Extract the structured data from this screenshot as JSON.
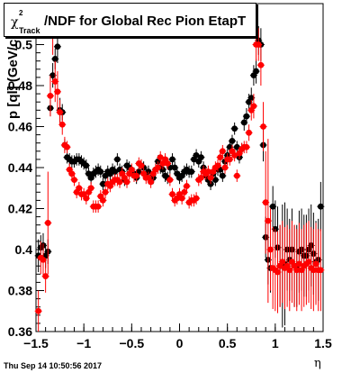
{
  "title": {
    "chi": "χ",
    "sup": "2",
    "sub": "Track",
    "main": "/NDF for Global Rec Pion EtapT"
  },
  "ylabel": "p [ql] (GeV/c",
  "xlabel": "η",
  "timestamp": "Thu Sep 14 10:50:56 2017",
  "colors": {
    "series_black": "#000000",
    "series_red": "#ff0000"
  },
  "chart_data": {
    "type": "scatter",
    "title": "χ2Track/NDF for Global Rec Pion EtapT",
    "xlabel": "η",
    "ylabel": "p [ql] (GeV/c",
    "xlim": [
      -1.5,
      1.5
    ],
    "ylim": [
      0.36,
      0.52
    ],
    "grid": false,
    "x_ticks": [
      "−1.5",
      "−1",
      "−0.5",
      "0",
      "0.5",
      "1",
      "1.5"
    ],
    "y_ticks": [
      "0.36",
      "0.38",
      "0.4",
      "0.42",
      "0.44",
      "0.46",
      "0.48",
      "0.5"
    ],
    "series": [
      {
        "color": "#000000",
        "x": [
          -1.475,
          -1.45,
          -1.425,
          -1.4,
          -1.375,
          -1.35,
          -1.325,
          -1.3,
          -1.275,
          -1.25,
          -1.225,
          -1.2,
          -1.175,
          -1.15,
          -1.125,
          -1.1,
          -1.075,
          -1.05,
          -1.025,
          -1.0,
          -0.975,
          -0.95,
          -0.925,
          -0.9,
          -0.875,
          -0.85,
          -0.825,
          -0.8,
          -0.775,
          -0.75,
          -0.725,
          -0.7,
          -0.675,
          -0.65,
          -0.625,
          -0.6,
          -0.575,
          -0.55,
          -0.525,
          -0.5,
          -0.475,
          -0.45,
          -0.425,
          -0.4,
          -0.375,
          -0.35,
          -0.325,
          -0.3,
          -0.275,
          -0.25,
          -0.225,
          -0.2,
          -0.175,
          -0.15,
          -0.125,
          -0.1,
          -0.075,
          -0.05,
          -0.025,
          0.0,
          0.025,
          0.05,
          0.075,
          0.1,
          0.125,
          0.15,
          0.175,
          0.2,
          0.225,
          0.25,
          0.275,
          0.3,
          0.325,
          0.35,
          0.375,
          0.4,
          0.425,
          0.45,
          0.475,
          0.5,
          0.525,
          0.55,
          0.575,
          0.6,
          0.625,
          0.65,
          0.675,
          0.7,
          0.725,
          0.75,
          0.775,
          0.8,
          0.825,
          0.85,
          0.875,
          0.9,
          0.925,
          0.95,
          0.975,
          1.0,
          1.025,
          1.05,
          1.075,
          1.1,
          1.125,
          1.15,
          1.175,
          1.2,
          1.225,
          1.25,
          1.275,
          1.3,
          1.325,
          1.35,
          1.375,
          1.4,
          1.425,
          1.45,
          1.475
        ],
        "y": [
          0.397,
          0.401,
          0.402,
          0.397,
          0.399,
          0.469,
          0.485,
          0.493,
          0.499,
          0.468,
          0.467,
          0.451,
          0.445,
          0.444,
          0.443,
          0.443,
          0.444,
          0.444,
          0.443,
          0.442,
          0.441,
          0.437,
          0.435,
          0.437,
          0.438,
          0.439,
          0.438,
          0.432,
          0.436,
          0.438,
          0.437,
          0.439,
          0.438,
          0.444,
          0.439,
          0.438,
          0.434,
          0.441,
          0.44,
          0.438,
          0.437,
          0.435,
          0.438,
          0.441,
          0.44,
          0.437,
          0.438,
          0.435,
          0.435,
          0.439,
          0.443,
          0.44,
          0.439,
          0.436,
          0.435,
          0.44,
          0.444,
          0.44,
          0.437,
          0.435,
          0.436,
          0.438,
          0.439,
          0.438,
          0.438,
          0.444,
          0.446,
          0.443,
          0.445,
          0.44,
          0.436,
          0.434,
          0.432,
          0.437,
          0.434,
          0.439,
          0.439,
          0.436,
          0.443,
          0.446,
          0.45,
          0.453,
          0.459,
          0.45,
          0.445,
          0.449,
          0.462,
          0.465,
          0.472,
          0.474,
          0.485,
          0.487,
          0.502,
          0.5,
          0.451,
          0.406,
          0.395,
          0.391,
          0.421,
          0.41,
          0.401,
          0.392,
          0.392,
          0.393,
          0.4,
          0.395,
          0.4,
          0.392,
          0.392,
          0.399,
          0.4,
          0.397,
          0.397,
          0.4,
          0.402,
          0.398,
          0.394,
          0.395,
          0.421
        ],
        "yerr": [
          0.008,
          0.006,
          0.006,
          0.006,
          0.006,
          0.004,
          0.006,
          0.005,
          0.008,
          0.006,
          0.004,
          0.003,
          0.003,
          0.003,
          0.003,
          0.003,
          0.003,
          0.003,
          0.003,
          0.003,
          0.003,
          0.003,
          0.003,
          0.003,
          0.003,
          0.003,
          0.003,
          0.003,
          0.003,
          0.003,
          0.003,
          0.003,
          0.003,
          0.003,
          0.003,
          0.003,
          0.003,
          0.003,
          0.003,
          0.003,
          0.003,
          0.003,
          0.003,
          0.003,
          0.003,
          0.003,
          0.003,
          0.003,
          0.003,
          0.003,
          0.003,
          0.003,
          0.003,
          0.003,
          0.003,
          0.003,
          0.003,
          0.003,
          0.003,
          0.003,
          0.003,
          0.003,
          0.003,
          0.003,
          0.003,
          0.003,
          0.003,
          0.003,
          0.003,
          0.003,
          0.003,
          0.003,
          0.003,
          0.003,
          0.003,
          0.003,
          0.003,
          0.003,
          0.003,
          0.003,
          0.003,
          0.003,
          0.003,
          0.003,
          0.003,
          0.003,
          0.004,
          0.004,
          0.004,
          0.005,
          0.005,
          0.006,
          0.007,
          0.008,
          0.008,
          0.01,
          0.012,
          0.012,
          0.01,
          0.014,
          0.02,
          0.02,
          0.03,
          0.03,
          0.02,
          0.02,
          0.02,
          0.02,
          0.02,
          0.02,
          0.02,
          0.02,
          0.02,
          0.02,
          0.02,
          0.02,
          0.02,
          0.02,
          0.012
        ]
      },
      {
        "color": "#ff0000",
        "x": [
          -1.475,
          -1.45,
          -1.425,
          -1.4,
          -1.375,
          -1.35,
          -1.325,
          -1.3,
          -1.275,
          -1.25,
          -1.225,
          -1.2,
          -1.175,
          -1.15,
          -1.125,
          -1.1,
          -1.075,
          -1.05,
          -1.025,
          -1.0,
          -0.975,
          -0.95,
          -0.925,
          -0.9,
          -0.875,
          -0.85,
          -0.825,
          -0.8,
          -0.775,
          -0.75,
          -0.725,
          -0.7,
          -0.675,
          -0.65,
          -0.625,
          -0.6,
          -0.575,
          -0.55,
          -0.525,
          -0.5,
          -0.475,
          -0.45,
          -0.425,
          -0.4,
          -0.375,
          -0.35,
          -0.325,
          -0.3,
          -0.275,
          -0.25,
          -0.225,
          -0.2,
          -0.175,
          -0.15,
          -0.125,
          -0.1,
          -0.075,
          -0.05,
          -0.025,
          0.0,
          0.025,
          0.05,
          0.075,
          0.1,
          0.125,
          0.15,
          0.175,
          0.2,
          0.225,
          0.25,
          0.275,
          0.3,
          0.325,
          0.35,
          0.375,
          0.4,
          0.425,
          0.45,
          0.475,
          0.5,
          0.525,
          0.55,
          0.575,
          0.6,
          0.625,
          0.65,
          0.675,
          0.7,
          0.725,
          0.75,
          0.775,
          0.8,
          0.825,
          0.85,
          0.875,
          0.9,
          0.925,
          0.95,
          0.975,
          1.0,
          1.025,
          1.05,
          1.075,
          1.1,
          1.125,
          1.15,
          1.175,
          1.2,
          1.225,
          1.25,
          1.275,
          1.3,
          1.325,
          1.35,
          1.375,
          1.4,
          1.425,
          1.45,
          1.475
        ],
        "y": [
          0.37,
          0.396,
          0.395,
          0.387,
          0.413,
          0.475,
          0.505,
          0.482,
          0.477,
          0.467,
          0.461,
          0.451,
          0.45,
          0.439,
          0.437,
          0.434,
          0.428,
          0.43,
          0.427,
          0.427,
          0.425,
          0.428,
          0.43,
          0.421,
          0.421,
          0.421,
          0.426,
          0.424,
          0.428,
          0.432,
          0.431,
          0.433,
          0.434,
          0.434,
          0.433,
          0.437,
          0.435,
          0.433,
          0.437,
          0.439,
          0.436,
          0.436,
          0.442,
          0.441,
          0.437,
          0.435,
          0.435,
          0.433,
          0.437,
          0.439,
          0.44,
          0.445,
          0.442,
          0.444,
          0.442,
          0.434,
          0.427,
          0.424,
          0.425,
          0.427,
          0.425,
          0.428,
          0.431,
          0.423,
          0.424,
          0.424,
          0.425,
          0.434,
          0.435,
          0.438,
          0.437,
          0.438,
          0.435,
          0.438,
          0.44,
          0.441,
          0.445,
          0.448,
          0.44,
          0.444,
          0.444,
          0.448,
          0.446,
          0.436,
          0.447,
          0.449,
          0.45,
          0.45,
          0.457,
          0.468,
          0.47,
          0.5,
          0.5,
          0.49,
          0.46,
          0.423,
          0.414,
          0.4,
          0.391,
          0.39,
          0.389,
          0.392,
          0.394,
          0.391,
          0.392,
          0.39,
          0.394,
          0.392,
          0.39,
          0.393,
          0.39,
          0.392,
          0.393,
          0.394,
          0.391,
          0.39,
          0.393,
          0.39,
          0.39
        ],
        "yerr": [
          0.01,
          0.008,
          0.008,
          0.008,
          0.025,
          0.01,
          0.01,
          0.01,
          0.01,
          0.006,
          0.005,
          0.004,
          0.003,
          0.003,
          0.003,
          0.003,
          0.003,
          0.003,
          0.003,
          0.003,
          0.003,
          0.003,
          0.003,
          0.003,
          0.003,
          0.003,
          0.003,
          0.003,
          0.003,
          0.003,
          0.003,
          0.003,
          0.003,
          0.003,
          0.003,
          0.003,
          0.003,
          0.003,
          0.003,
          0.003,
          0.003,
          0.003,
          0.003,
          0.003,
          0.003,
          0.003,
          0.003,
          0.003,
          0.003,
          0.003,
          0.003,
          0.003,
          0.003,
          0.003,
          0.003,
          0.003,
          0.003,
          0.003,
          0.003,
          0.003,
          0.003,
          0.003,
          0.003,
          0.003,
          0.003,
          0.003,
          0.003,
          0.003,
          0.003,
          0.003,
          0.003,
          0.003,
          0.003,
          0.003,
          0.003,
          0.003,
          0.003,
          0.003,
          0.003,
          0.003,
          0.003,
          0.003,
          0.003,
          0.003,
          0.003,
          0.003,
          0.003,
          0.003,
          0.004,
          0.005,
          0.006,
          0.008,
          0.008,
          0.01,
          0.012,
          0.025,
          0.04,
          0.02,
          0.02,
          0.02,
          0.02,
          0.02,
          0.02,
          0.02,
          0.02,
          0.02,
          0.02,
          0.02,
          0.02,
          0.02,
          0.02,
          0.02,
          0.02,
          0.02,
          0.02,
          0.02,
          0.02,
          0.02,
          0.02
        ]
      }
    ]
  }
}
